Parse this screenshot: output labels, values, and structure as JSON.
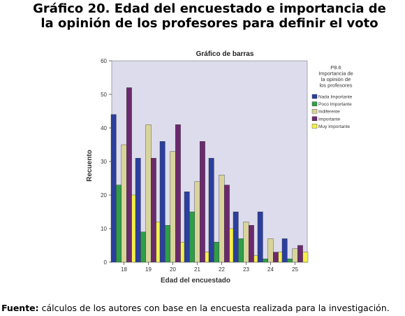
{
  "heading": "Gráfico 20. Edad del encuestado e importancia de la opinión de los profesores para definir el voto",
  "footer": {
    "label": "Fuente:",
    "text": " cálculos de los autores con base en la encuesta realizada para la investigación."
  },
  "chart_data": {
    "type": "bar",
    "title": "Gráfico de barras",
    "xlabel": "Edad del encuestado",
    "ylabel": "Recuento",
    "categories": [
      "18",
      "19",
      "20",
      "21",
      "22",
      "23",
      "24",
      "25"
    ],
    "ylim": [
      0,
      60
    ],
    "yticks": [
      0,
      10,
      20,
      30,
      40,
      50,
      60
    ],
    "grid": false,
    "legend_position": "right",
    "legend_title": [
      "P8.6",
      "Importancia de",
      "la opinión de",
      "los profesores"
    ],
    "series": [
      {
        "name": "Nada Importante",
        "color": "#2b3f9e",
        "values": [
          44,
          31,
          36,
          21,
          31,
          15,
          15,
          7
        ]
      },
      {
        "name": "Poco Importante",
        "color": "#2f9e4a",
        "values": [
          23,
          9,
          11,
          15,
          6,
          7,
          1,
          1
        ]
      },
      {
        "name": "Indiferente",
        "color": "#d8d49a",
        "values": [
          35,
          41,
          33,
          24,
          26,
          12,
          7,
          4
        ]
      },
      {
        "name": "Importante",
        "color": "#6c2a6e",
        "values": [
          52,
          31,
          41,
          36,
          23,
          11,
          3,
          5
        ]
      },
      {
        "name": "Muy Importante",
        "color": "#f5f04a",
        "values": [
          20,
          12,
          6,
          3,
          10,
          2,
          3,
          3
        ]
      }
    ],
    "plot_background": "#dcdcec"
  }
}
